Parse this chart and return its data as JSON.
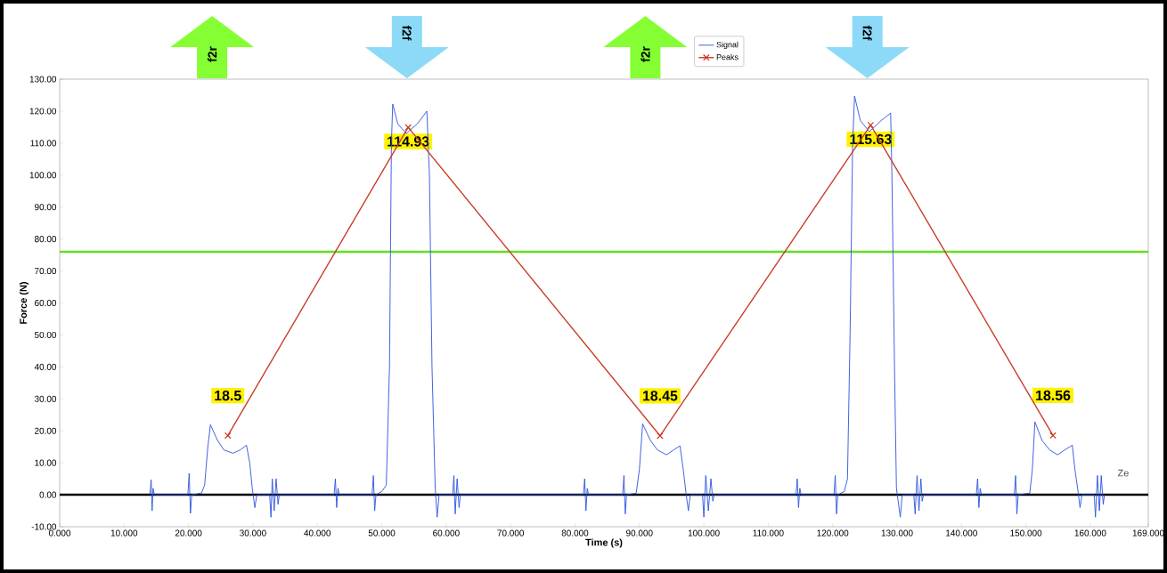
{
  "chart_data": {
    "type": "line",
    "xlabel": "Time (s)",
    "ylabel": "Force (N)",
    "xlim": [
      0,
      169
    ],
    "ylim": [
      -10,
      130
    ],
    "xticks": [
      {
        "value": 0,
        "label": "0.000"
      },
      {
        "value": 10,
        "label": "10.000"
      },
      {
        "value": 20,
        "label": "20.000"
      },
      {
        "value": 30,
        "label": "30.000"
      },
      {
        "value": 40,
        "label": "40.000"
      },
      {
        "value": 50,
        "label": "50.000"
      },
      {
        "value": 60,
        "label": "60.000"
      },
      {
        "value": 70,
        "label": "70.000"
      },
      {
        "value": 80,
        "label": "80.000"
      },
      {
        "value": 90,
        "label": "90.000"
      },
      {
        "value": 100,
        "label": "100.000"
      },
      {
        "value": 110,
        "label": "110.000"
      },
      {
        "value": 120,
        "label": "120.000"
      },
      {
        "value": 130,
        "label": "130.000"
      },
      {
        "value": 140,
        "label": "140.000"
      },
      {
        "value": 150,
        "label": "150.000"
      },
      {
        "value": 160,
        "label": "160.000"
      },
      {
        "value": 169,
        "label": "169.000"
      }
    ],
    "yticks": [
      {
        "value": -10,
        "label": "-10.00"
      },
      {
        "value": 0,
        "label": "0.00"
      },
      {
        "value": 10,
        "label": "10.00"
      },
      {
        "value": 20,
        "label": "20.00"
      },
      {
        "value": 30,
        "label": "30.00"
      },
      {
        "value": 40,
        "label": "40.00"
      },
      {
        "value": 50,
        "label": "50.00"
      },
      {
        "value": 60,
        "label": "60.00"
      },
      {
        "value": 70,
        "label": "70.00"
      },
      {
        "value": 80,
        "label": "80.00"
      },
      {
        "value": 90,
        "label": "90.00"
      },
      {
        "value": 100,
        "label": "100.00"
      },
      {
        "value": 110,
        "label": "110.00"
      },
      {
        "value": 120,
        "label": "120.00"
      },
      {
        "value": 130,
        "label": "130.00"
      }
    ],
    "legend": "top",
    "series": [
      {
        "name": "Signal",
        "color": "#2a52e0",
        "marker": "none",
        "x": [
          14.0,
          14.2,
          14.35,
          14.5,
          14.7,
          19.9,
          20.1,
          20.3,
          20.5,
          22.0,
          22.5,
          23.0,
          23.4,
          24.5,
          25.5,
          26.9,
          28.0,
          29.0,
          29.5,
          29.9,
          30.3,
          30.6,
          32.6,
          32.8,
          33.0,
          33.3,
          33.6,
          33.9,
          34.1,
          42.6,
          42.8,
          43.0,
          43.2,
          43.4,
          48.5,
          48.7,
          48.9,
          49.1,
          50.0,
          50.7,
          51.2,
          51.5,
          51.7,
          52.5,
          53.8,
          55.5,
          57.0,
          57.4,
          57.8,
          58.3,
          58.6,
          58.9,
          61.0,
          61.2,
          61.4,
          61.7,
          62.0,
          62.2,
          81.3,
          81.5,
          81.7,
          81.9,
          82.1,
          87.4,
          87.6,
          87.8,
          88.0,
          89.5,
          90.0,
          90.5,
          91.7,
          92.8,
          94.2,
          95.3,
          96.3,
          96.8,
          97.2,
          97.6,
          97.9,
          99.8,
          100.0,
          100.3,
          100.7,
          101.1,
          101.4,
          101.6,
          114.3,
          114.5,
          114.7,
          114.9,
          115.1,
          120.2,
          120.4,
          120.6,
          120.8,
          121.8,
          122.3,
          122.7,
          123.1,
          123.4,
          124.3,
          125.7,
          127.5,
          129.0,
          129.2,
          129.6,
          129.9,
          130.5,
          130.8,
          132.6,
          132.8,
          133.1,
          133.4,
          133.7,
          133.9,
          134.1,
          142.3,
          142.5,
          142.7,
          142.9,
          143.1,
          148.2,
          148.4,
          148.6,
          148.8,
          150.6,
          151.0,
          151.4,
          152.5,
          153.7,
          154.9,
          156.0,
          157.2,
          157.6,
          158.1,
          158.4,
          158.7,
          160.6,
          160.8,
          161.1,
          161.4,
          161.7,
          162.0,
          162.2
        ],
        "values": [
          0,
          4.7,
          -5,
          2,
          0,
          0,
          6.7,
          -5.8,
          0,
          0.5,
          3,
          15,
          21.9,
          17,
          14,
          13,
          14,
          15.5,
          10,
          2,
          -4,
          0,
          0,
          -7,
          5,
          -5,
          5,
          -3,
          0,
          0,
          5,
          -4,
          2,
          0,
          0,
          6,
          -5,
          0,
          1,
          3,
          40,
          110,
          122.2,
          116,
          113,
          116,
          120,
          100,
          40,
          2,
          -7,
          0,
          0,
          6,
          -6,
          5,
          -4,
          0,
          0,
          5,
          -5,
          2,
          0,
          0,
          6,
          -6,
          0,
          0.5,
          8,
          22.2,
          17,
          14,
          12.5,
          14,
          15.3,
          8,
          1,
          -5,
          0,
          0,
          -7,
          6,
          -5,
          5,
          -2,
          0,
          0,
          5,
          -4,
          2,
          0,
          0,
          6,
          -6,
          0,
          1,
          5,
          50,
          110,
          124.7,
          117,
          113.6,
          117,
          119.4,
          100,
          40,
          2,
          -7,
          0,
          0,
          -6,
          6,
          -5,
          5,
          -2,
          0,
          0,
          5,
          -4,
          2,
          0,
          0,
          6,
          -6,
          0,
          0.5,
          8,
          22.8,
          17,
          14,
          12.5,
          14,
          15.5,
          8,
          1,
          -4,
          0,
          0,
          -7,
          6,
          -5,
          6,
          -3,
          0
        ]
      },
      {
        "name": "Peaks",
        "color": "#c8402a",
        "marker": "cross",
        "x": [
          26.1,
          54.1,
          93.2,
          125.9,
          154.2
        ],
        "values": [
          18.5,
          114.93,
          18.45,
          115.63,
          18.56
        ],
        "value_labels": [
          "18.5",
          "114.93",
          "18.45",
          "115.63",
          "18.56"
        ]
      }
    ],
    "ref_lines": [
      {
        "axis": "y",
        "value": 76,
        "color": "#66dd22"
      },
      {
        "axis": "y",
        "value": 0,
        "color": "#000000"
      }
    ],
    "annotations": [
      "f2r",
      "f2f",
      "f2r",
      "f2f",
      "Ze"
    ]
  }
}
